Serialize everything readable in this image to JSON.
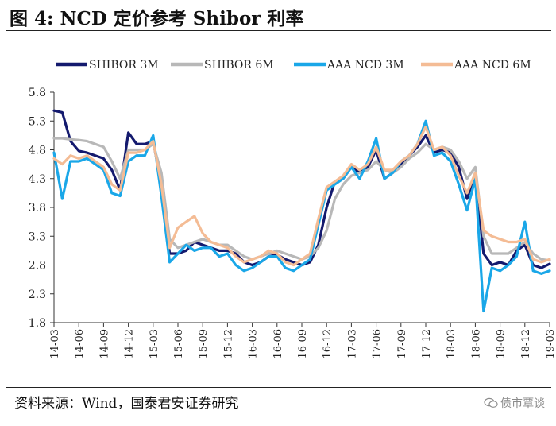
{
  "header": {
    "title": "图 4:  NCD 定价参考 Shibor 利率"
  },
  "footer": {
    "source": "资料来源：Wind，国泰君安证券研究",
    "watermark": "债市覃谈"
  },
  "colors": {
    "shibor3m": "#141a6e",
    "shibor6m": "#b8b8b8",
    "ncd3m": "#1aa7e8",
    "ncd6m": "#f4bc95"
  },
  "chart_data": {
    "type": "line",
    "title": "NCD 定价参考 Shibor 利率",
    "xlabel": "",
    "ylabel": "",
    "ylim": [
      1.8,
      5.8
    ],
    "yticks": [
      "1.8",
      "2.3",
      "2.8",
      "3.3",
      "3.8",
      "4.3",
      "4.8",
      "5.3",
      "5.8"
    ],
    "xticks": [
      "14-03",
      "14-06",
      "14-09",
      "14-12",
      "15-03",
      "15-06",
      "15-09",
      "15-12",
      "16-03",
      "16-06",
      "16-09",
      "16-12",
      "17-03",
      "17-06",
      "17-09",
      "17-12",
      "18-03",
      "18-06",
      "18-09",
      "18-12",
      "19-03"
    ],
    "grid": false,
    "legend": "top",
    "series": [
      {
        "name": "SHIBOR 3M",
        "x": [
          "14-03",
          "14-04",
          "14-05",
          "14-06",
          "14-07",
          "14-08",
          "14-09",
          "14-10",
          "14-11",
          "14-12",
          "15-01",
          "15-02",
          "15-03",
          "15-04",
          "15-05",
          "15-06",
          "15-07",
          "15-08",
          "15-09",
          "15-10",
          "15-11",
          "15-12",
          "16-01",
          "16-02",
          "16-03",
          "16-04",
          "16-05",
          "16-06",
          "16-07",
          "16-08",
          "16-09",
          "16-10",
          "16-11",
          "16-12",
          "17-01",
          "17-02",
          "17-03",
          "17-04",
          "17-05",
          "17-06",
          "17-07",
          "17-08",
          "17-09",
          "17-10",
          "17-11",
          "17-12",
          "18-01",
          "18-02",
          "18-03",
          "18-04",
          "18-05",
          "18-06",
          "18-07",
          "18-08",
          "18-09",
          "18-10",
          "18-11",
          "18-12",
          "19-01",
          "19-02",
          "19-03"
        ],
        "values": [
          5.48,
          5.45,
          4.95,
          4.78,
          4.75,
          4.7,
          4.65,
          4.45,
          4.1,
          5.1,
          4.9,
          4.9,
          4.95,
          4.2,
          3.0,
          3.0,
          3.05,
          3.2,
          3.15,
          3.1,
          3.05,
          3.05,
          3.0,
          2.85,
          2.8,
          2.85,
          2.95,
          2.98,
          2.9,
          2.85,
          2.8,
          2.85,
          3.15,
          3.8,
          4.25,
          4.3,
          4.5,
          4.4,
          4.5,
          4.8,
          4.3,
          4.4,
          4.55,
          4.7,
          4.85,
          5.05,
          4.75,
          4.8,
          4.75,
          4.5,
          3.95,
          4.4,
          3.0,
          2.8,
          2.85,
          2.8,
          3.05,
          3.15,
          2.8,
          2.75,
          2.82
        ]
      },
      {
        "name": "SHIBOR 6M",
        "x": [
          "14-03",
          "14-04",
          "14-05",
          "14-06",
          "14-07",
          "14-08",
          "14-09",
          "14-10",
          "14-11",
          "14-12",
          "15-01",
          "15-02",
          "15-03",
          "15-04",
          "15-05",
          "15-06",
          "15-07",
          "15-08",
          "15-09",
          "15-10",
          "15-11",
          "15-12",
          "16-01",
          "16-02",
          "16-03",
          "16-04",
          "16-05",
          "16-06",
          "16-07",
          "16-08",
          "16-09",
          "16-10",
          "16-11",
          "16-12",
          "17-01",
          "17-02",
          "17-03",
          "17-04",
          "17-05",
          "17-06",
          "17-07",
          "17-08",
          "17-09",
          "17-10",
          "17-11",
          "17-12",
          "18-01",
          "18-02",
          "18-03",
          "18-04",
          "18-05",
          "18-06",
          "18-07",
          "18-08",
          "18-09",
          "18-10",
          "18-11",
          "18-12",
          "19-01",
          "19-02",
          "19-03"
        ],
        "values": [
          5.0,
          5.0,
          4.98,
          4.97,
          4.95,
          4.9,
          4.85,
          4.6,
          4.3,
          4.8,
          4.8,
          4.8,
          4.9,
          4.4,
          3.25,
          3.1,
          3.15,
          3.2,
          3.25,
          3.2,
          3.15,
          3.15,
          3.05,
          2.95,
          2.9,
          2.95,
          3.0,
          3.05,
          3.0,
          2.95,
          2.9,
          2.95,
          3.1,
          3.4,
          3.95,
          4.2,
          4.35,
          4.4,
          4.45,
          4.6,
          4.45,
          4.4,
          4.5,
          4.65,
          4.75,
          4.9,
          4.8,
          4.85,
          4.8,
          4.6,
          4.3,
          4.5,
          3.3,
          3.0,
          3.0,
          3.0,
          3.1,
          3.2,
          3.0,
          2.9,
          2.88
        ]
      },
      {
        "name": "AAA NCD 3M",
        "x": [
          "14-03",
          "14-04",
          "14-05",
          "14-06",
          "14-07",
          "14-08",
          "14-09",
          "14-10",
          "14-11",
          "14-12",
          "15-01",
          "15-02",
          "15-03",
          "15-04",
          "15-05",
          "15-06",
          "15-07",
          "15-08",
          "15-09",
          "15-10",
          "15-11",
          "15-12",
          "16-01",
          "16-02",
          "16-03",
          "16-04",
          "16-05",
          "16-06",
          "16-07",
          "16-08",
          "16-09",
          "16-10",
          "16-11",
          "16-12",
          "17-01",
          "17-02",
          "17-03",
          "17-04",
          "17-05",
          "17-06",
          "17-07",
          "17-08",
          "17-09",
          "17-10",
          "17-11",
          "17-12",
          "18-01",
          "18-02",
          "18-03",
          "18-04",
          "18-05",
          "18-06",
          "18-07",
          "18-08",
          "18-09",
          "18-10",
          "18-11",
          "18-12",
          "19-01",
          "19-02",
          "19-03"
        ],
        "values": [
          4.75,
          3.95,
          4.6,
          4.6,
          4.65,
          4.55,
          4.45,
          4.05,
          4.0,
          4.6,
          4.7,
          4.7,
          5.05,
          4.0,
          2.85,
          3.0,
          3.15,
          3.05,
          3.1,
          3.1,
          2.95,
          3.0,
          2.8,
          2.7,
          2.75,
          2.85,
          2.95,
          2.95,
          2.75,
          2.7,
          2.8,
          2.9,
          3.5,
          4.1,
          4.2,
          4.3,
          4.5,
          4.3,
          4.6,
          5.0,
          4.3,
          4.4,
          4.6,
          4.7,
          4.9,
          5.3,
          4.7,
          4.75,
          4.6,
          4.2,
          3.75,
          4.3,
          2.0,
          2.75,
          2.7,
          2.8,
          2.95,
          3.55,
          2.7,
          2.65,
          2.7
        ]
      },
      {
        "name": "AAA NCD 6M",
        "x": [
          "14-03",
          "14-04",
          "14-05",
          "14-06",
          "14-07",
          "14-08",
          "14-09",
          "14-10",
          "14-11",
          "14-12",
          "15-01",
          "15-02",
          "15-03",
          "15-04",
          "15-05",
          "15-06",
          "15-07",
          "15-08",
          "15-09",
          "15-10",
          "15-11",
          "15-12",
          "16-01",
          "16-02",
          "16-03",
          "16-04",
          "16-05",
          "16-06",
          "16-07",
          "16-08",
          "16-09",
          "16-10",
          "16-11",
          "16-12",
          "17-01",
          "17-02",
          "17-03",
          "17-04",
          "17-05",
          "17-06",
          "17-07",
          "17-08",
          "17-09",
          "17-10",
          "17-11",
          "17-12",
          "18-01",
          "18-02",
          "18-03",
          "18-04",
          "18-05",
          "18-06",
          "18-07",
          "18-08",
          "18-09",
          "18-10",
          "18-11",
          "18-12",
          "19-01",
          "19-02",
          "19-03"
        ],
        "values": [
          4.65,
          4.55,
          4.7,
          4.65,
          4.7,
          4.6,
          4.5,
          4.2,
          4.1,
          4.75,
          4.75,
          4.8,
          4.95,
          4.2,
          3.1,
          3.45,
          3.55,
          3.65,
          3.35,
          3.2,
          3.15,
          3.1,
          2.95,
          2.85,
          2.9,
          2.95,
          3.05,
          3.0,
          2.85,
          2.8,
          2.9,
          3.0,
          3.6,
          4.15,
          4.25,
          4.35,
          4.55,
          4.45,
          4.55,
          4.85,
          4.45,
          4.45,
          4.6,
          4.7,
          4.9,
          5.2,
          4.8,
          4.85,
          4.7,
          4.35,
          4.05,
          4.4,
          3.4,
          3.3,
          3.25,
          3.2,
          3.2,
          3.25,
          2.9,
          2.85,
          2.9
        ]
      }
    ]
  }
}
